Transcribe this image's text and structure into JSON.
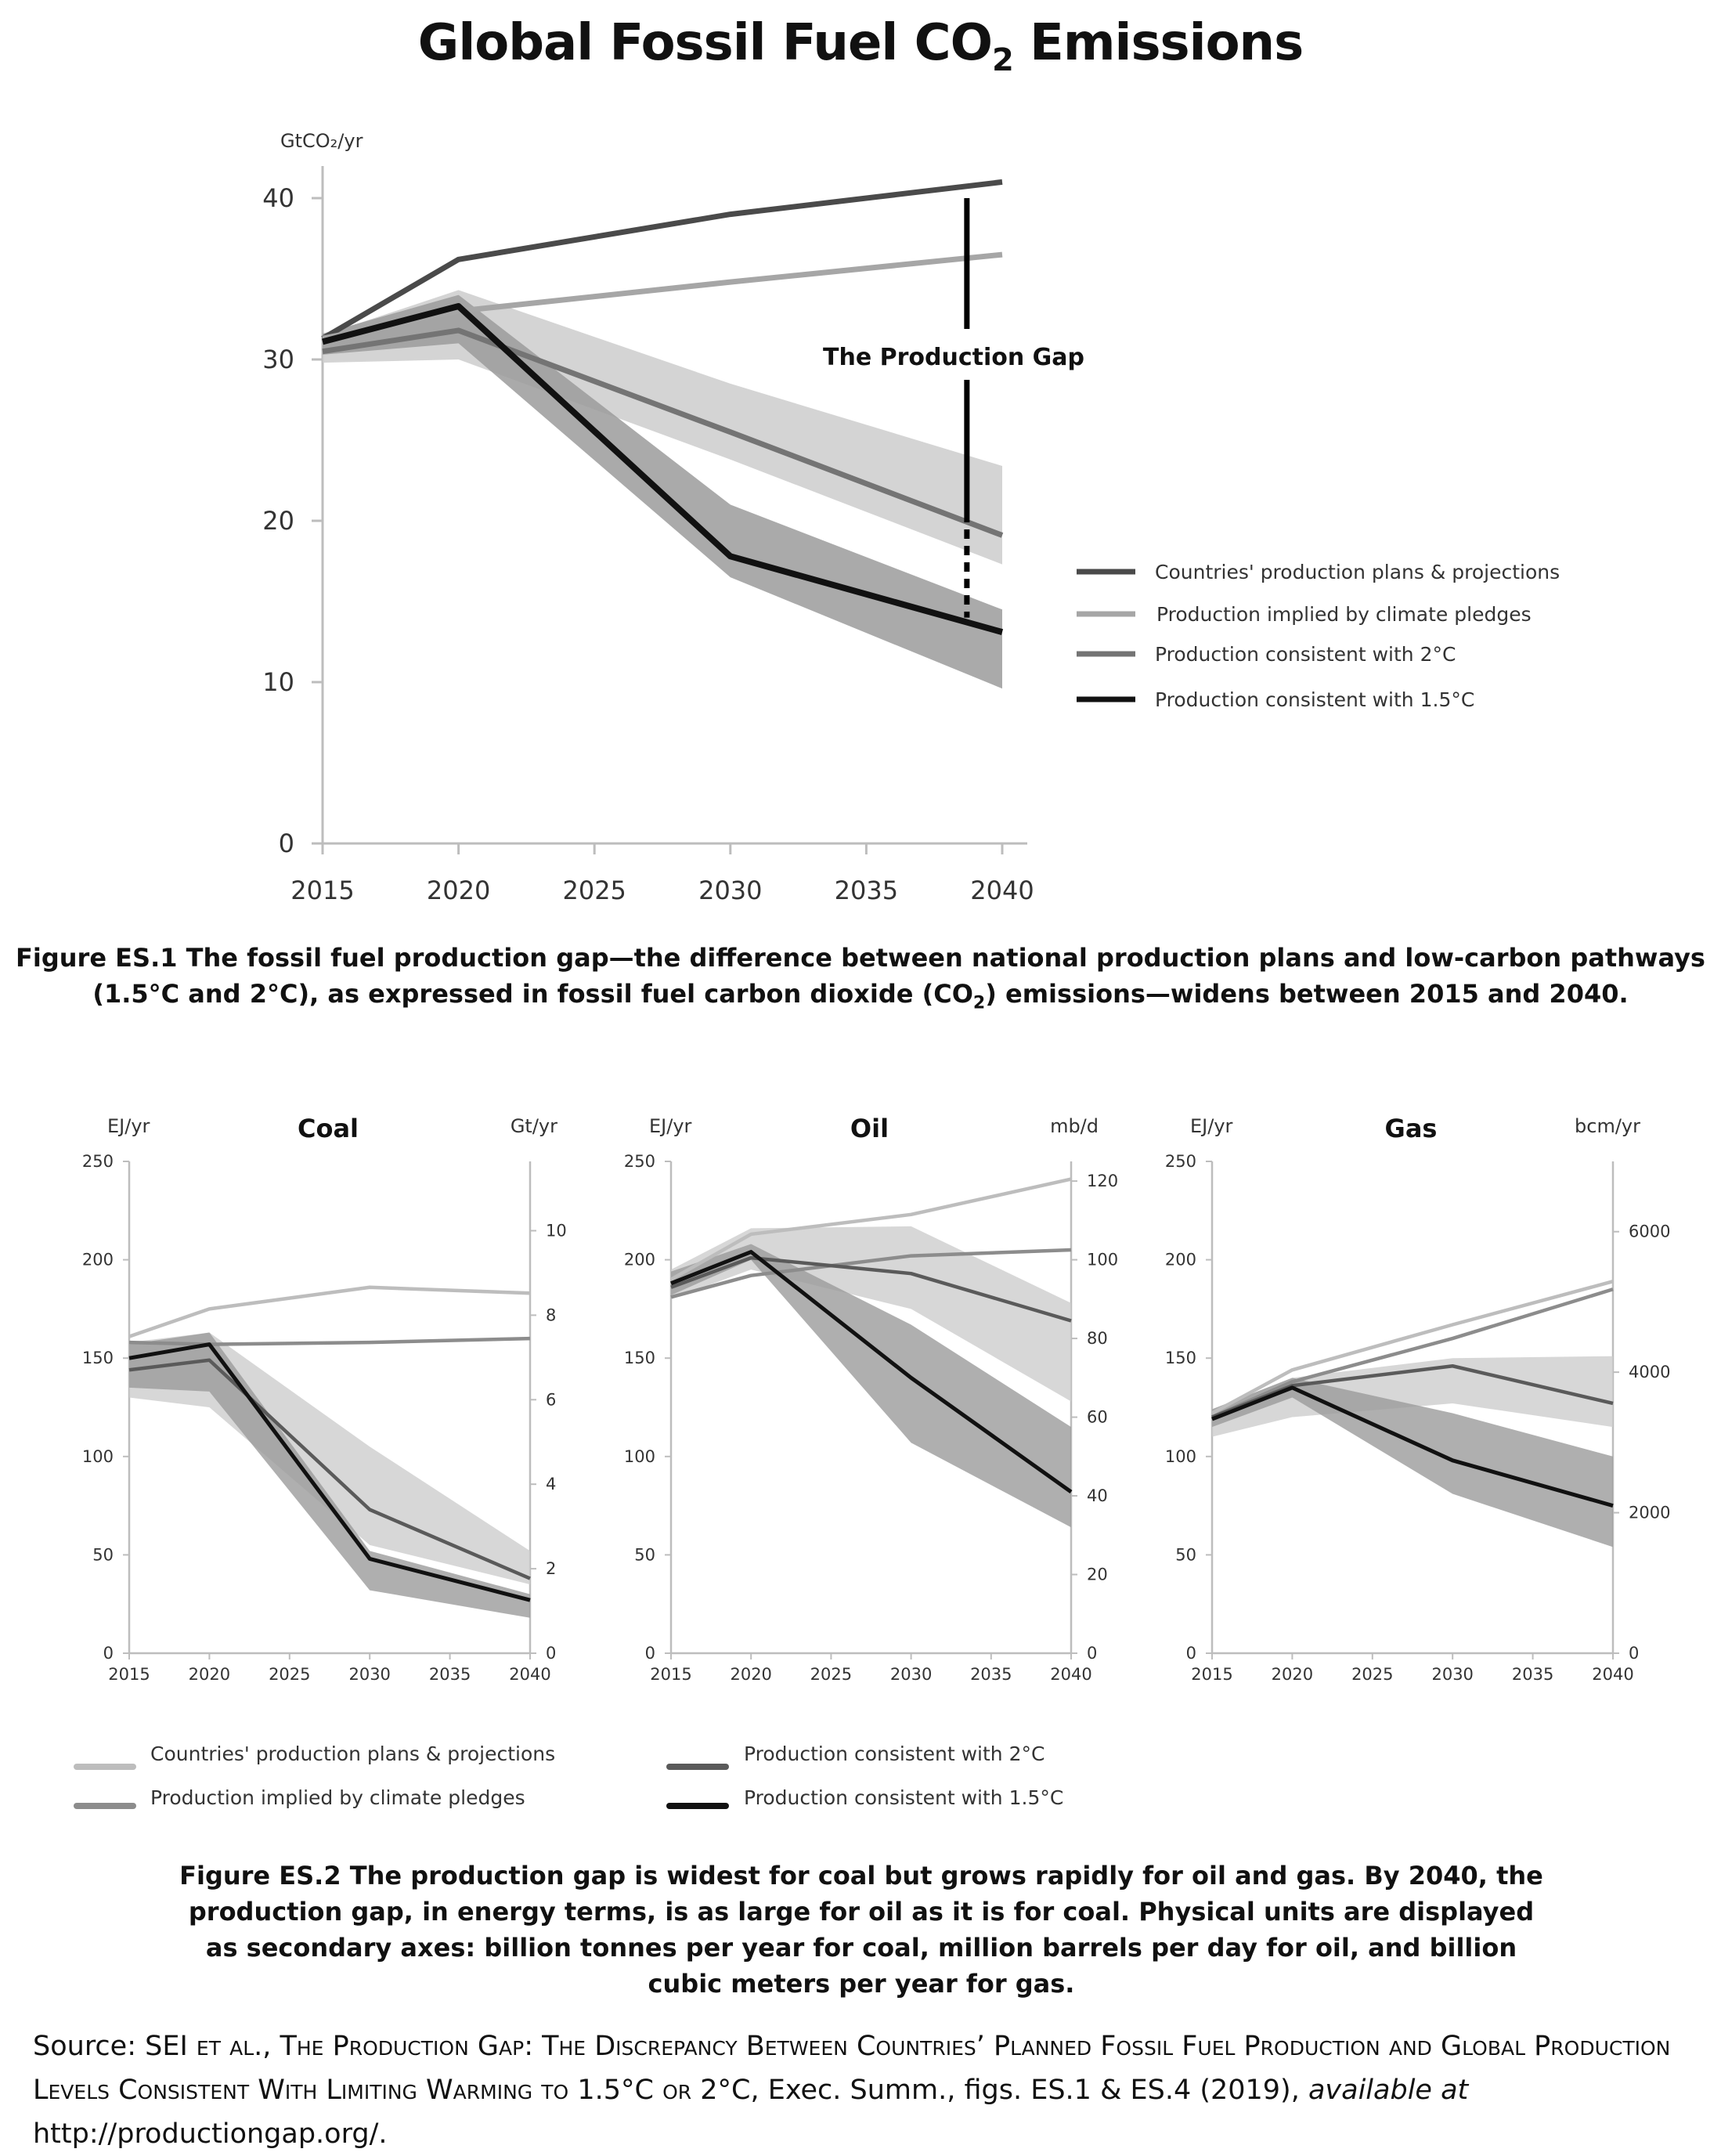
{
  "page": {
    "title_main": "Global Fossil Fuel CO",
    "title_sub": "2",
    "title_end": " Emissions",
    "caption1_a": "Figure ES.1 The fossil fuel production gap—the difference between national production plans and low-carbon pathways",
    "caption1_b1": "(1.5°C and 2°C),  as expressed in fossil fuel carbon dioxide (CO",
    "caption1_b2": "2",
    "caption1_b3": ") emissions—widens between 2015 and 2040.",
    "caption2": "Figure ES.2 The production gap is widest for coal but grows rapidly for oil and gas. By 2040, the production gap, in energy terms, is as large for oil as it is for coal. Physical units are displayed as secondary axes: billion tonnes per year for coal, million barrels per day for oil, and billion cubic meters per year for gas.",
    "source_1": "Source: SEI ",
    "source_2": "et al., The Production Gap: The Discrepancy Between Countries’ Planned Fossil Fuel Production and Global Production Levels Consistent With Limiting Warming to",
    "source_3": " 1.5°C ",
    "source_4": "or",
    "source_5": " 2°C, Exec. Summ., figs. ES.1 & ES.4 (2019), ",
    "source_6": "available at",
    "source_7": " http://productiongap.org/."
  },
  "colors": {
    "plans": "#4a4a4a",
    "pledges": "#a6a6a6",
    "two_c": "#747474",
    "one_five_c": "#111111",
    "band_light": "#cdcdcd",
    "band_dark": "#9b9b9b",
    "axis": "#bdbdbd",
    "small_plans": "#bdbdbd",
    "small_pledges": "#8c8c8c",
    "small_two_c": "#5a5a5a"
  },
  "chart_data": [
    {
      "type": "line",
      "ylabel": "GtCO₂/yr",
      "xlim": [
        2015,
        2040
      ],
      "ylim": [
        0,
        40
      ],
      "xticks": [
        2015,
        2020,
        2025,
        2030,
        2035,
        2040
      ],
      "yticks": [
        0,
        10,
        20,
        30,
        40
      ],
      "annotation": "The Production Gap",
      "gap_x": 2038.7,
      "gap_range": [
        14,
        40
      ],
      "legend": [
        "Countries' production  plans & projections",
        "Production implied by  climate pledges",
        "Production consistent  with 2°C",
        "Production consistent  with 1.5°C"
      ],
      "series": [
        {
          "name": "Countries' production  plans & projections",
          "x": [
            2015,
            2020,
            2030,
            2040
          ],
          "y": [
            31.3,
            36.2,
            39.0,
            41.0
          ]
        },
        {
          "name": "Production implied by  climate pledges",
          "x": [
            2015,
            2020,
            2030,
            2040
          ],
          "y": [
            31.3,
            33.0,
            34.8,
            36.5
          ]
        },
        {
          "name": "Production consistent  with 2°C",
          "x": [
            2015,
            2020,
            2030,
            2040
          ],
          "y": [
            30.5,
            31.8,
            25.5,
            19.1
          ]
        },
        {
          "name": "Production consistent  with 1.5°C",
          "x": [
            2015,
            2020,
            2030,
            2040
          ],
          "y": [
            31.1,
            33.3,
            17.8,
            13.1
          ]
        }
      ],
      "bands": [
        {
          "series": "Production consistent  with 2°C",
          "x": [
            2015,
            2020,
            2030,
            2040
          ],
          "low": [
            29.8,
            30.0,
            23.8,
            17.3
          ],
          "high": [
            31.5,
            34.3,
            28.5,
            23.4
          ]
        },
        {
          "series": "Production consistent  with 1.5°C",
          "x": [
            2015,
            2020,
            2030,
            2040
          ],
          "low": [
            30.3,
            31.0,
            16.5,
            9.6
          ],
          "high": [
            31.6,
            34.0,
            21.0,
            14.5
          ]
        }
      ]
    },
    {
      "type": "line",
      "title": "Coal",
      "ylabel": "EJ/yr",
      "y2label": "Gt/yr",
      "xlim": [
        2015,
        2040
      ],
      "ylim": [
        0,
        250
      ],
      "xticks": [
        2015,
        2020,
        2025,
        2030,
        2035,
        2040
      ],
      "yticks": [
        0,
        50,
        100,
        150,
        200,
        250
      ],
      "y2lim": [
        0,
        11.64
      ],
      "y2ticks": [
        0,
        2,
        4,
        6,
        8,
        10
      ],
      "series": [
        {
          "name": "Countries' production  plans & projections",
          "x": [
            2015,
            2020,
            2030,
            2040
          ],
          "y": [
            161,
            175,
            186,
            183
          ]
        },
        {
          "name": "Production implied by  climate pledges",
          "x": [
            2015,
            2020,
            2030,
            2040
          ],
          "y": [
            158,
            157,
            158,
            160
          ]
        },
        {
          "name": "Production consistent  with 2°C",
          "x": [
            2015,
            2020,
            2030,
            2040
          ],
          "y": [
            144,
            149,
            73,
            38
          ]
        },
        {
          "name": "Production consistent  with 1.5°C",
          "x": [
            2015,
            2020,
            2030,
            2040
          ],
          "y": [
            150,
            157,
            48,
            27
          ]
        }
      ],
      "bands": [
        {
          "x": [
            2015,
            2020,
            2030,
            2040
          ],
          "low": [
            130,
            125,
            55,
            35
          ],
          "high": [
            158,
            163,
            105,
            52
          ]
        },
        {
          "x": [
            2015,
            2020,
            2030,
            2040
          ],
          "low": [
            135,
            133,
            32,
            18
          ],
          "high": [
            157,
            163,
            52,
            30
          ]
        }
      ]
    },
    {
      "type": "line",
      "title": "Oil",
      "ylabel": "EJ/yr",
      "y2label": "mb/d",
      "xlim": [
        2015,
        2040
      ],
      "ylim": [
        0,
        250
      ],
      "xticks": [
        2015,
        2020,
        2025,
        2030,
        2035,
        2040
      ],
      "yticks": [
        0,
        50,
        100,
        150,
        200,
        250
      ],
      "y2lim": [
        0,
        125
      ],
      "y2ticks": [
        0,
        20,
        40,
        60,
        80,
        100,
        120
      ],
      "series": [
        {
          "name": "Countries' production  plans & projections",
          "x": [
            2015,
            2020,
            2030,
            2040
          ],
          "y": [
            190,
            213,
            223,
            241
          ]
        },
        {
          "name": "Production implied by  climate pledges",
          "x": [
            2015,
            2020,
            2030,
            2040
          ],
          "y": [
            181,
            192,
            202,
            205
          ]
        },
        {
          "name": "Production consistent  with 2°C",
          "x": [
            2015,
            2020,
            2030,
            2040
          ],
          "y": [
            186,
            201,
            193,
            169
          ]
        },
        {
          "name": "Production consistent  with 1.5°C",
          "x": [
            2015,
            2020,
            2030,
            2040
          ],
          "y": [
            188,
            204,
            140,
            82
          ]
        }
      ],
      "bands": [
        {
          "x": [
            2015,
            2020,
            2030,
            2040
          ],
          "low": [
            180,
            195,
            175,
            128
          ],
          "high": [
            195,
            216,
            217,
            178
          ]
        },
        {
          "x": [
            2015,
            2020,
            2030,
            2040
          ],
          "low": [
            182,
            200,
            107,
            64
          ],
          "high": [
            194,
            208,
            167,
            115
          ]
        }
      ]
    },
    {
      "type": "line",
      "title": "Gas",
      "ylabel": "EJ/yr",
      "y2label": "bcm/yr",
      "xlim": [
        2015,
        2040
      ],
      "ylim": [
        0,
        250
      ],
      "xticks": [
        2015,
        2020,
        2025,
        2030,
        2035,
        2040
      ],
      "yticks": [
        0,
        50,
        100,
        150,
        200,
        250
      ],
      "y2lim": [
        0,
        7000
      ],
      "y2ticks": [
        0,
        2000,
        4000,
        6000
      ],
      "series": [
        {
          "name": "Countries' production  plans & projections",
          "x": [
            2015,
            2020,
            2030,
            2040
          ],
          "y": [
            122,
            144,
            167,
            189
          ]
        },
        {
          "name": "Production implied by  climate pledges",
          "x": [
            2015,
            2020,
            2030,
            2040
          ],
          "y": [
            120,
            138,
            160,
            185
          ]
        },
        {
          "name": "Production consistent  with 2°C",
          "x": [
            2015,
            2020,
            2030,
            2040
          ],
          "y": [
            120,
            136,
            146,
            127
          ]
        },
        {
          "name": "Production consistent  with 1.5°C",
          "x": [
            2015,
            2020,
            2030,
            2040
          ],
          "y": [
            119,
            135,
            98,
            75
          ]
        }
      ],
      "bands": [
        {
          "x": [
            2015,
            2020,
            2030,
            2040
          ],
          "low": [
            110,
            120,
            127,
            115
          ],
          "high": [
            124,
            140,
            150,
            151
          ]
        },
        {
          "x": [
            2015,
            2020,
            2030,
            2040
          ],
          "low": [
            115,
            130,
            81,
            54
          ],
          "high": [
            124,
            140,
            122,
            100
          ]
        }
      ]
    }
  ]
}
